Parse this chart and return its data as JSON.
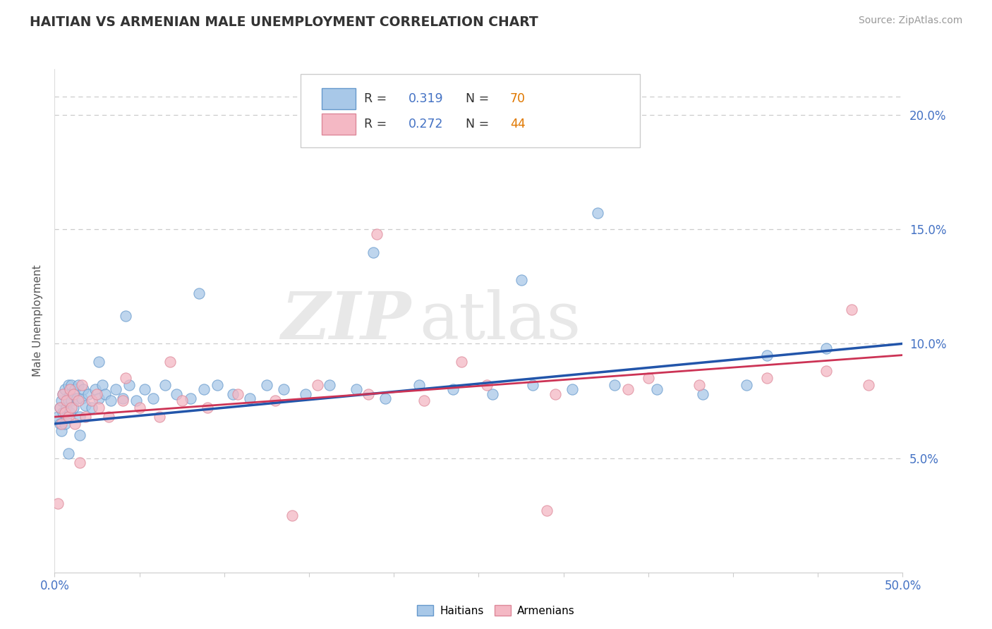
{
  "title": "HAITIAN VS ARMENIAN MALE UNEMPLOYMENT CORRELATION CHART",
  "source_text": "Source: ZipAtlas.com",
  "ylabel": "Male Unemployment",
  "ytick_labels": [
    "5.0%",
    "10.0%",
    "15.0%",
    "20.0%"
  ],
  "ytick_values": [
    0.05,
    0.1,
    0.15,
    0.2
  ],
  "legend_R_haitian": "0.319",
  "legend_N_haitian": "70",
  "legend_R_armenian": "0.272",
  "legend_N_armenian": "44",
  "haitian_color": "#a8c8e8",
  "haitian_edge_color": "#6699cc",
  "armenian_color": "#f4b8c4",
  "armenian_edge_color": "#dd8899",
  "trend_haitian_color": "#2255aa",
  "trend_armenian_color": "#cc3355",
  "watermark_zip": "ZIP",
  "watermark_atlas": "atlas",
  "xmin": 0.0,
  "xmax": 0.5,
  "ymin": 0.0,
  "ymax": 0.22,
  "label_color": "#4472c4",
  "title_color": "#333333",
  "source_color": "#999999",
  "grid_color": "#cccccc",
  "legend_R_color": "#4472c4",
  "legend_N_color": "#e07800",
  "legend_text_color": "#333333",
  "haitian_x": [
    0.002,
    0.003,
    0.003,
    0.004,
    0.004,
    0.005,
    0.005,
    0.006,
    0.006,
    0.007,
    0.007,
    0.008,
    0.008,
    0.009,
    0.009,
    0.01,
    0.01,
    0.011,
    0.012,
    0.013,
    0.014,
    0.015,
    0.016,
    0.017,
    0.018,
    0.02,
    0.022,
    0.024,
    0.026,
    0.028,
    0.03,
    0.033,
    0.036,
    0.04,
    0.044,
    0.048,
    0.053,
    0.058,
    0.065,
    0.072,
    0.08,
    0.088,
    0.096,
    0.105,
    0.115,
    0.125,
    0.135,
    0.148,
    0.162,
    0.178,
    0.195,
    0.215,
    0.235,
    0.258,
    0.282,
    0.305,
    0.33,
    0.355,
    0.382,
    0.408,
    0.188,
    0.275,
    0.32,
    0.085,
    0.042,
    0.026,
    0.015,
    0.008,
    0.42,
    0.455
  ],
  "haitian_y": [
    0.068,
    0.072,
    0.065,
    0.075,
    0.062,
    0.07,
    0.078,
    0.065,
    0.08,
    0.072,
    0.068,
    0.075,
    0.082,
    0.07,
    0.078,
    0.075,
    0.082,
    0.072,
    0.08,
    0.076,
    0.082,
    0.068,
    0.076,
    0.08,
    0.073,
    0.078,
    0.072,
    0.08,
    0.076,
    0.082,
    0.078,
    0.075,
    0.08,
    0.076,
    0.082,
    0.075,
    0.08,
    0.076,
    0.082,
    0.078,
    0.076,
    0.08,
    0.082,
    0.078,
    0.076,
    0.082,
    0.08,
    0.078,
    0.082,
    0.08,
    0.076,
    0.082,
    0.08,
    0.078,
    0.082,
    0.08,
    0.082,
    0.08,
    0.078,
    0.082,
    0.14,
    0.128,
    0.157,
    0.122,
    0.112,
    0.092,
    0.06,
    0.052,
    0.095,
    0.098
  ],
  "armenian_x": [
    0.002,
    0.003,
    0.004,
    0.005,
    0.006,
    0.007,
    0.008,
    0.009,
    0.01,
    0.011,
    0.012,
    0.014,
    0.016,
    0.018,
    0.022,
    0.026,
    0.032,
    0.04,
    0.05,
    0.062,
    0.075,
    0.09,
    0.108,
    0.13,
    0.155,
    0.185,
    0.218,
    0.255,
    0.295,
    0.338,
    0.38,
    0.42,
    0.455,
    0.48,
    0.068,
    0.042,
    0.025,
    0.015,
    0.29,
    0.35,
    0.19,
    0.24,
    0.14,
    0.47
  ],
  "armenian_y": [
    0.03,
    0.072,
    0.065,
    0.078,
    0.07,
    0.075,
    0.068,
    0.08,
    0.072,
    0.078,
    0.065,
    0.075,
    0.082,
    0.068,
    0.075,
    0.072,
    0.068,
    0.075,
    0.072,
    0.068,
    0.075,
    0.072,
    0.078,
    0.075,
    0.082,
    0.078,
    0.075,
    0.082,
    0.078,
    0.08,
    0.082,
    0.085,
    0.088,
    0.082,
    0.092,
    0.085,
    0.078,
    0.048,
    0.027,
    0.085,
    0.148,
    0.092,
    0.025,
    0.115
  ]
}
